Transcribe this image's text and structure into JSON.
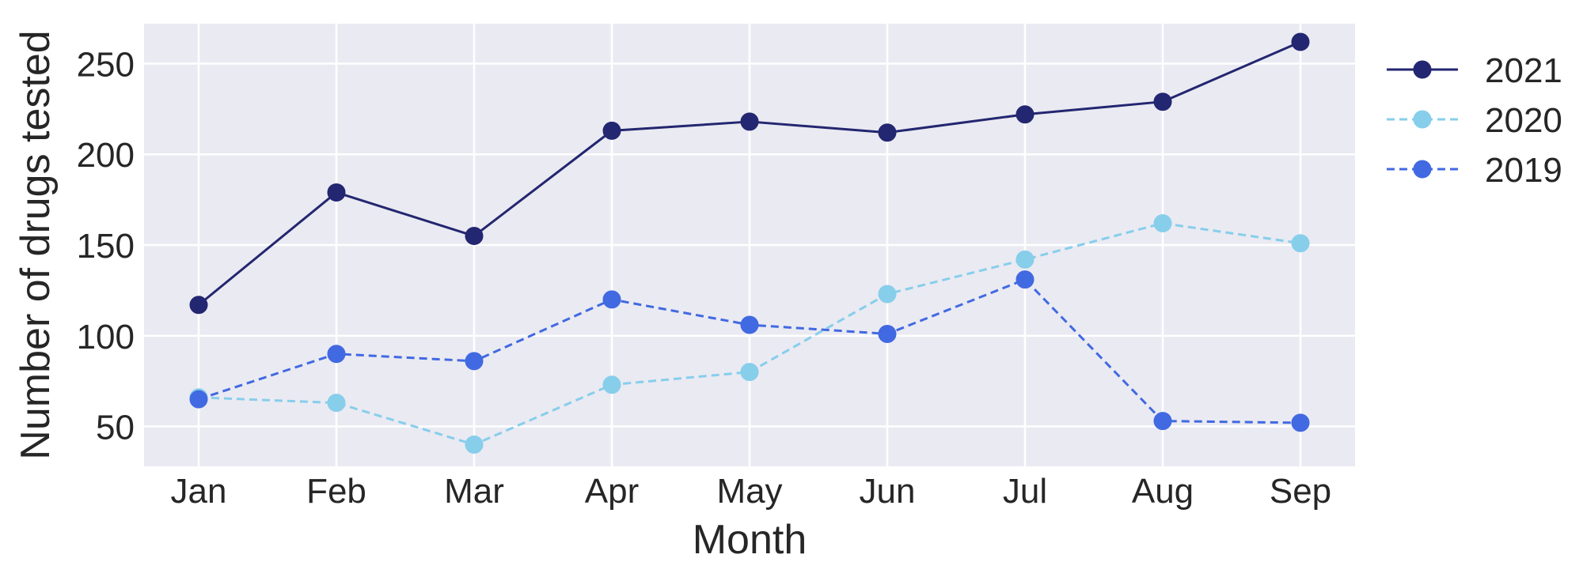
{
  "chart_data": {
    "type": "line",
    "title": "",
    "xlabel": "Month",
    "ylabel": "Number of drugs tested",
    "categories": [
      "Jan",
      "Feb",
      "Mar",
      "Apr",
      "May",
      "Jun",
      "Jul",
      "Aug",
      "Sep"
    ],
    "ylim": [
      28,
      272
    ],
    "yticks": [
      50,
      100,
      150,
      200,
      250
    ],
    "grid": true,
    "legend_position": "outside-top-right",
    "background_color": "#eaeaf2",
    "grid_color": "#ffffff",
    "series": [
      {
        "name": "2021",
        "values": [
          117,
          179,
          155,
          213,
          218,
          212,
          222,
          229,
          262
        ],
        "color": "#232670",
        "line_style": "solid"
      },
      {
        "name": "2020",
        "values": [
          66,
          63,
          40,
          73,
          80,
          123,
          142,
          162,
          151
        ],
        "color": "#87ceeb",
        "line_style": "dashed"
      },
      {
        "name": "2019",
        "values": [
          65,
          90,
          86,
          120,
          106,
          101,
          131,
          53,
          52
        ],
        "color": "#4169e1",
        "line_style": "dashed"
      }
    ]
  }
}
